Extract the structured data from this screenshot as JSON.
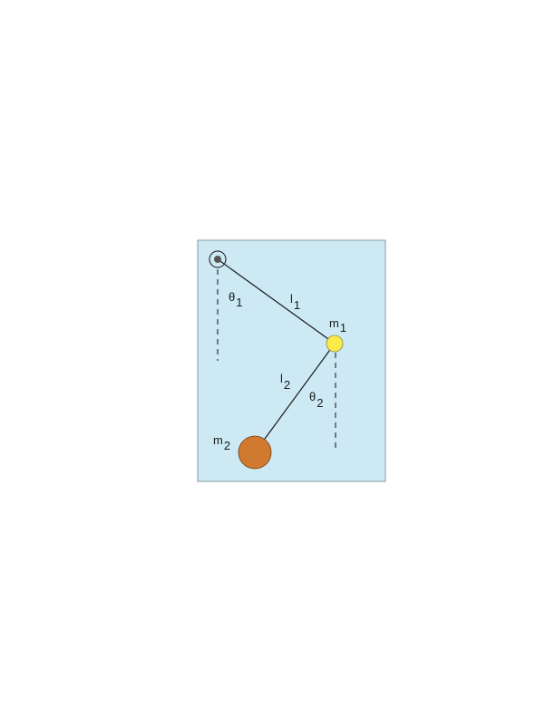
{
  "colors": {
    "panel_fill": "#cde9f3",
    "panel_stroke": "#8a9aa2",
    "rod": "#1a1a1a",
    "pivot_ring": "#333333",
    "pivot_dot": "#555555",
    "mass1_fill": "#fbea4a",
    "mass2_fill": "#cf7a2f",
    "reference_line": "#333333"
  },
  "labels": {
    "theta1": {
      "symbol": "θ",
      "sub": "1"
    },
    "theta2": {
      "symbol": "θ",
      "sub": "2"
    },
    "l1": {
      "symbol": "l",
      "sub": "1"
    },
    "l2": {
      "symbol": "l",
      "sub": "2"
    },
    "m1": {
      "symbol": "m",
      "sub": "1"
    },
    "m2": {
      "symbol": "m",
      "sub": "2"
    }
  },
  "icons": {
    "pivot": "pivot-icon"
  }
}
